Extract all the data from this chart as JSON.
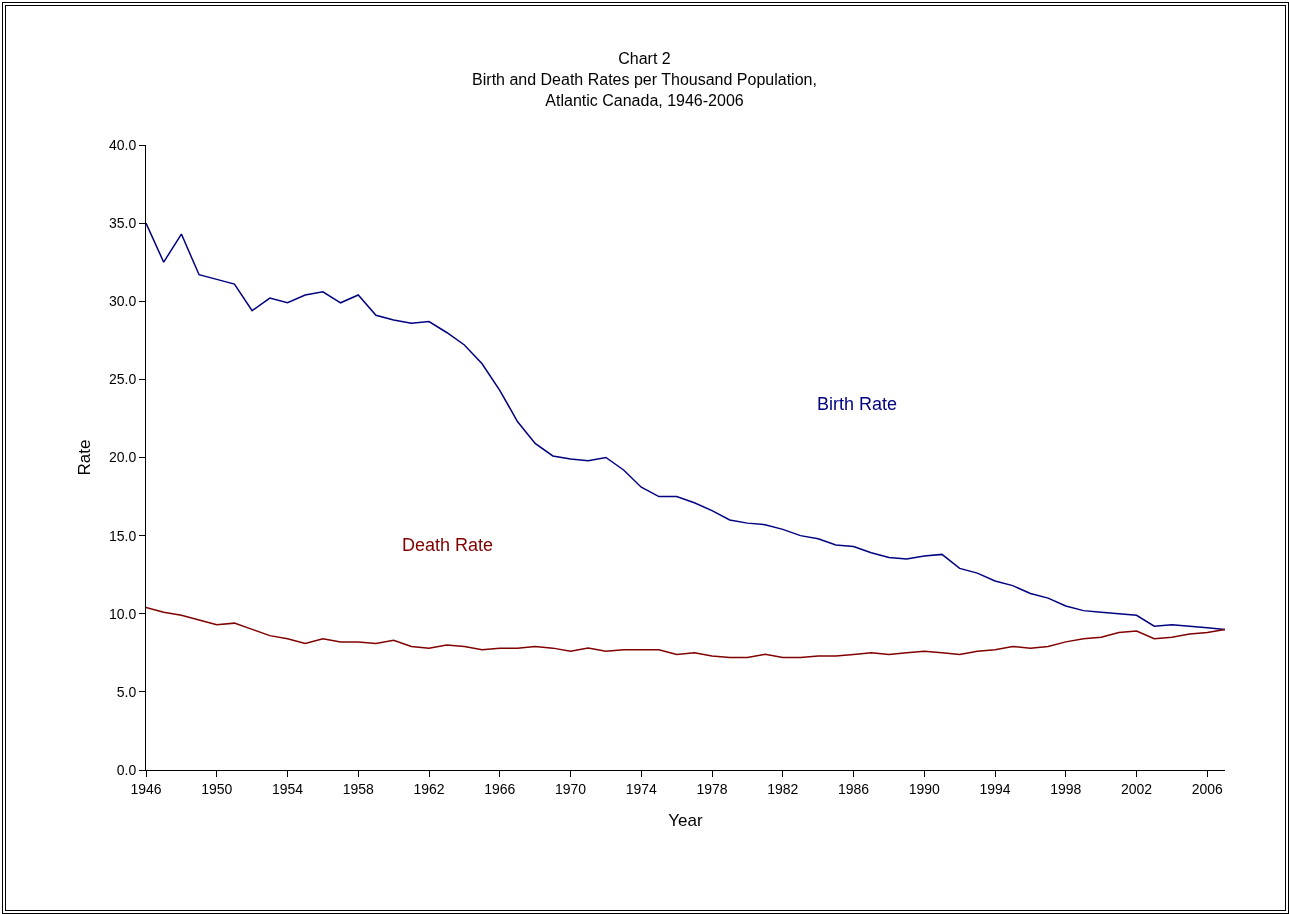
{
  "chart_data": {
    "type": "line",
    "title": "Chart 2\nBirth and Death Rates per Thousand Population,\nAtlantic Canada, 1946-2006",
    "xlabel": "Year",
    "ylabel": "Rate",
    "x": [
      1946,
      1947,
      1948,
      1949,
      1950,
      1951,
      1952,
      1953,
      1954,
      1955,
      1956,
      1957,
      1958,
      1959,
      1960,
      1961,
      1962,
      1963,
      1964,
      1965,
      1966,
      1967,
      1968,
      1969,
      1970,
      1971,
      1972,
      1973,
      1974,
      1975,
      1976,
      1977,
      1978,
      1979,
      1980,
      1981,
      1982,
      1983,
      1984,
      1985,
      1986,
      1987,
      1988,
      1989,
      1990,
      1991,
      1992,
      1993,
      1994,
      1995,
      1996,
      1997,
      1998,
      1999,
      2000,
      2001,
      2002,
      2003,
      2004,
      2005,
      2006,
      2007
    ],
    "series": [
      {
        "name": "Birth Rate",
        "color": "#000080",
        "values": [
          35.0,
          32.5,
          34.3,
          31.7,
          31.4,
          31.1,
          29.4,
          30.2,
          29.9,
          30.4,
          30.6,
          29.9,
          30.4,
          29.1,
          28.8,
          28.6,
          28.7,
          28.0,
          27.2,
          26.0,
          24.3,
          22.3,
          20.9,
          20.1,
          19.9,
          19.8,
          20.0,
          19.2,
          18.1,
          17.5,
          17.5,
          17.1,
          16.6,
          16.0,
          15.8,
          15.7,
          15.4,
          15.0,
          14.8,
          14.4,
          14.3,
          13.9,
          13.6,
          13.5,
          13.7,
          13.8,
          12.9,
          12.6,
          12.1,
          11.8,
          11.3,
          11.0,
          10.5,
          10.2,
          10.1,
          10.0,
          9.9,
          9.2,
          9.3,
          9.2,
          9.1,
          9.0
        ]
      },
      {
        "name": "Death Rate",
        "color": "#800000",
        "values": [
          10.4,
          10.1,
          9.9,
          9.6,
          9.3,
          9.4,
          9.0,
          8.6,
          8.4,
          8.1,
          8.4,
          8.2,
          8.2,
          8.1,
          8.3,
          7.9,
          7.8,
          8.0,
          7.9,
          7.7,
          7.8,
          7.8,
          7.9,
          7.8,
          7.6,
          7.8,
          7.6,
          7.7,
          7.7,
          7.7,
          7.4,
          7.5,
          7.3,
          7.2,
          7.2,
          7.4,
          7.2,
          7.2,
          7.3,
          7.3,
          7.4,
          7.5,
          7.4,
          7.5,
          7.6,
          7.5,
          7.4,
          7.6,
          7.7,
          7.9,
          7.8,
          7.9,
          8.2,
          8.4,
          8.5,
          8.8,
          8.9,
          8.4,
          8.5,
          8.7,
          8.8,
          9.0
        ]
      }
    ],
    "xlim": [
      1946,
      2007
    ],
    "xticks": [
      1946,
      1950,
      1954,
      1958,
      1962,
      1966,
      1970,
      1974,
      1978,
      1982,
      1986,
      1990,
      1994,
      1998,
      2002,
      2006
    ],
    "ylim": [
      0,
      40
    ],
    "yticks": [
      {
        "value": 0,
        "label": "0.0"
      },
      {
        "value": 5,
        "label": "5.0"
      },
      {
        "value": 10,
        "label": "10.0"
      },
      {
        "value": 15,
        "label": "15.0"
      },
      {
        "value": 20,
        "label": "20.0"
      },
      {
        "value": 25,
        "label": "25.0"
      },
      {
        "value": 30,
        "label": "30.0"
      },
      {
        "value": 35,
        "label": "35.0"
      },
      {
        "value": 40,
        "label": "40.0"
      }
    ],
    "grid": false,
    "legend": false,
    "marker": "none",
    "line_style": "solid"
  }
}
